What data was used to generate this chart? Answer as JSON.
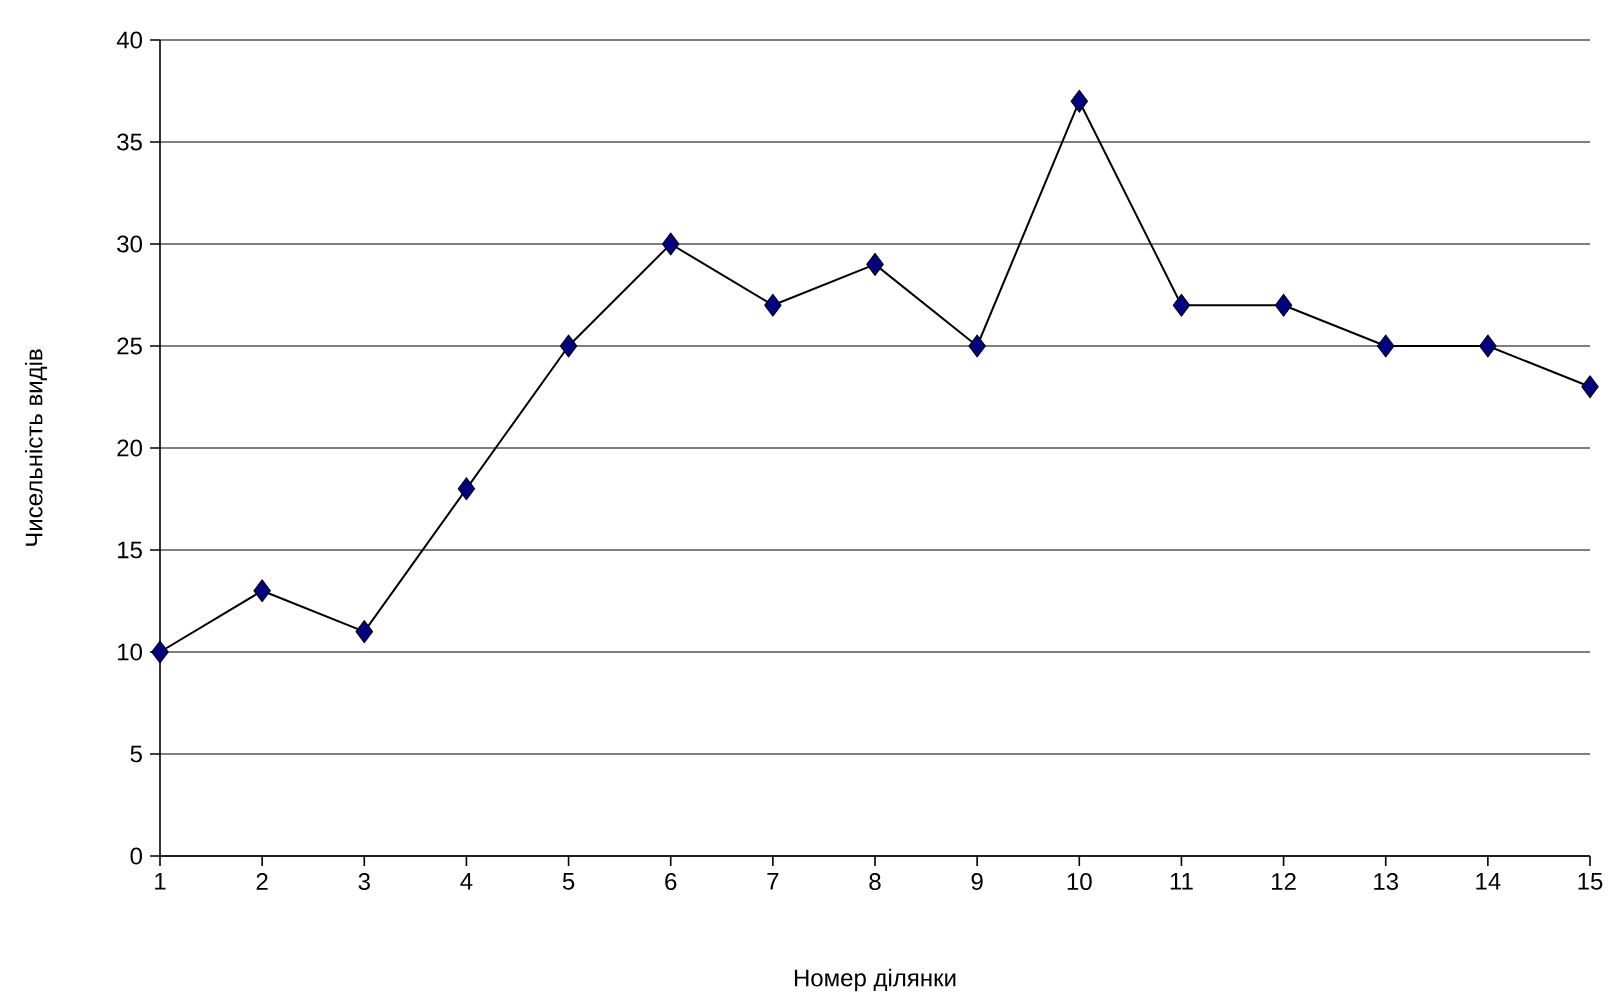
{
  "chart_data": {
    "type": "line",
    "xlabel": "Номер ділянки",
    "ylabel": "Чисельність видів",
    "x": [
      1,
      2,
      3,
      4,
      5,
      6,
      7,
      8,
      9,
      10,
      11,
      12,
      13,
      14,
      15
    ],
    "series": [
      {
        "color": "#000080",
        "values": [
          10,
          13,
          11,
          18,
          25,
          30,
          27,
          29,
          25,
          37,
          27,
          27,
          25,
          25,
          23
        ]
      }
    ],
    "xlim": [
      1,
      15
    ],
    "xticks": [
      1,
      2,
      3,
      4,
      5,
      6,
      7,
      8,
      9,
      10,
      11,
      12,
      13,
      14,
      15
    ],
    "ylim": [
      0,
      40
    ],
    "yticks": [
      0,
      5,
      10,
      15,
      20,
      25,
      30,
      35,
      40
    ],
    "grid": "y",
    "marker": "diamond",
    "line_style": "solid"
  }
}
